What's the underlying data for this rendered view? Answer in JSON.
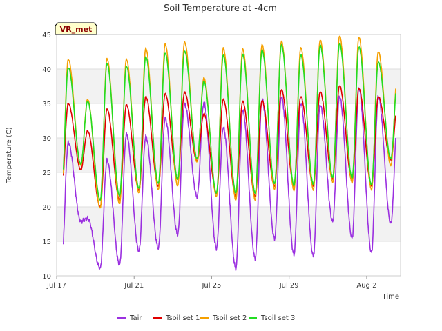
{
  "chart_data": {
    "type": "line",
    "title": "Soil Temperature at -4cm",
    "xlabel": "Time",
    "ylabel": "Temperature (C)",
    "badge": "VR_met",
    "ylim": [
      10,
      45
    ],
    "xlim": [
      "2024-07-17",
      "2024-08-03T18:00"
    ],
    "x_ticks": [
      {
        "label": "Jul 17",
        "day": 0
      },
      {
        "label": "Jul 21",
        "day": 4
      },
      {
        "label": "Jul 25",
        "day": 8
      },
      {
        "label": "Jul 29",
        "day": 12
      },
      {
        "label": "Aug 2",
        "day": 16
      }
    ],
    "y_ticks": [
      10,
      15,
      20,
      25,
      30,
      35,
      40,
      45
    ],
    "grid": true,
    "banded_background": true,
    "legend_position": "bottom",
    "series": [
      {
        "name": "Tair",
        "color": "#9b30e0",
        "daily_max": [
          29.3,
          18.3,
          26.7,
          30.5,
          30.2,
          32.8,
          34.9,
          35.1,
          31.5,
          34.0,
          35.6,
          36.0,
          35.0,
          34.8,
          36.0,
          37.2,
          36.0,
          33.0
        ],
        "daily_min": [
          11.2,
          17.9,
          11.1,
          11.6,
          13.6,
          14.0,
          16.0,
          21.5,
          14.0,
          11.1,
          12.5,
          15.4,
          13.1,
          12.9,
          17.9,
          15.5,
          13.4,
          17.6
        ]
      },
      {
        "name": "Tsoil set 1",
        "color": "#e00000",
        "daily_max": [
          35.0,
          31.0,
          34.2,
          34.8,
          36.0,
          36.4,
          36.6,
          33.5,
          35.6,
          35.3,
          35.4,
          37.0,
          36.0,
          36.7,
          37.6,
          37.2,
          36.0,
          35.0
        ],
        "daily_min": [
          22.0,
          25.4,
          20.0,
          21.0,
          22.4,
          23.0,
          24.0,
          26.7,
          22.0,
          21.5,
          21.5,
          23.0,
          23.0,
          23.0,
          24.0,
          23.8,
          23.0,
          26.8
        ]
      },
      {
        "name": "Tsoil set 2",
        "color": "#f5a000",
        "daily_max": [
          41.4,
          35.6,
          41.5,
          41.4,
          43.0,
          43.6,
          43.9,
          38.7,
          43.0,
          42.9,
          43.5,
          44.0,
          43.1,
          44.2,
          44.8,
          44.6,
          42.5,
          40.0
        ],
        "daily_min": [
          21.0,
          26.0,
          19.8,
          20.4,
          22.0,
          22.5,
          23.0,
          26.5,
          21.5,
          21.0,
          21.0,
          22.6,
          22.4,
          22.5,
          23.6,
          23.5,
          22.5,
          26.0
        ]
      },
      {
        "name": "Tsoil set 3",
        "color": "#22dd22",
        "daily_max": [
          40.2,
          35.3,
          40.8,
          40.4,
          41.8,
          42.3,
          42.6,
          38.2,
          42.0,
          42.1,
          42.7,
          43.5,
          42.0,
          43.4,
          43.7,
          43.2,
          41.0,
          39.0
        ],
        "daily_min": [
          22.0,
          26.2,
          21.0,
          21.6,
          22.7,
          23.4,
          24.0,
          27.0,
          22.0,
          22.0,
          22.0,
          23.4,
          23.1,
          23.3,
          24.3,
          24.2,
          23.2,
          27.0
        ]
      }
    ]
  }
}
